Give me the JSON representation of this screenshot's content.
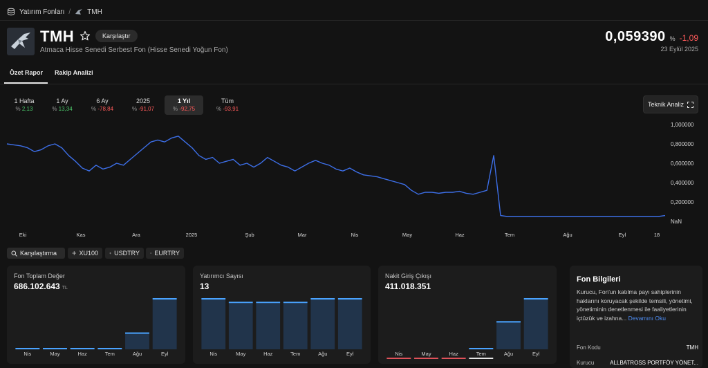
{
  "breadcrumb": {
    "root": "Yatırım Fonları",
    "separator": "/",
    "current": "TMH"
  },
  "header": {
    "code": "TMH",
    "compare_label": "Karşılaştır",
    "name": "Atmaca Hisse Senedi Serbest Fon (Hisse Senedi Yoğun Fon)",
    "price": "0,059390",
    "pct_symbol": "%",
    "change": "-1,09",
    "date": "23 Eylül 2025"
  },
  "tabs": [
    {
      "label": "Özet Rapor",
      "active": true
    },
    {
      "label": "Rakip Analizi",
      "active": false
    }
  ],
  "periods": [
    {
      "label": "1 Hafta",
      "value": "2,13",
      "sign": "pos"
    },
    {
      "label": "1 Ay",
      "value": "13,34",
      "sign": "pos"
    },
    {
      "label": "6 Ay",
      "value": "-78,84",
      "sign": "neg"
    },
    {
      "label": "2025",
      "value": "-91,07",
      "sign": "neg"
    },
    {
      "label": "1 Yıl",
      "value": "-92,75",
      "sign": "neg",
      "active": true
    },
    {
      "label": "Tüm",
      "value": "-93,91",
      "sign": "neg"
    }
  ],
  "tech_analysis_label": "Teknik Analiz",
  "chart_data": {
    "type": "line",
    "color": "#3d6fe8",
    "y_ticks": [
      "1,000000",
      "0,800000",
      "0,600000",
      "0,400000",
      "0,200000",
      "NaN"
    ],
    "ylim": [
      0,
      1
    ],
    "x_ticks": [
      "Eki",
      "Kas",
      "Ara",
      "2025",
      "Şub",
      "Mar",
      "Nis",
      "May",
      "Haz",
      "Tem",
      "Ağu",
      "Eyl",
      "18"
    ],
    "series": [
      {
        "values": [
          0.8,
          0.79,
          0.78,
          0.76,
          0.72,
          0.74,
          0.78,
          0.8,
          0.76,
          0.68,
          0.62,
          0.55,
          0.52,
          0.58,
          0.54,
          0.56,
          0.6,
          0.58,
          0.64,
          0.7,
          0.76,
          0.82,
          0.84,
          0.82,
          0.86,
          0.88,
          0.82,
          0.76,
          0.68,
          0.64,
          0.66,
          0.6,
          0.62,
          0.64,
          0.58,
          0.6,
          0.56,
          0.6,
          0.66,
          0.62,
          0.58,
          0.56,
          0.52,
          0.56,
          0.6,
          0.63,
          0.6,
          0.58,
          0.54,
          0.52,
          0.55,
          0.51,
          0.48,
          0.47,
          0.46,
          0.44,
          0.42,
          0.4,
          0.38,
          0.32,
          0.28,
          0.3,
          0.3,
          0.29,
          0.3,
          0.3,
          0.31,
          0.29,
          0.28,
          0.3,
          0.32,
          0.68,
          0.06,
          0.05,
          0.05,
          0.05,
          0.05,
          0.05,
          0.05,
          0.05,
          0.05,
          0.05,
          0.05,
          0.05,
          0.05,
          0.05,
          0.05,
          0.05,
          0.05,
          0.05,
          0.05,
          0.05,
          0.05,
          0.05,
          0.05,
          0.05,
          0.06
        ]
      }
    ]
  },
  "compare_chips": [
    {
      "label": "Karşılaştırma",
      "icon": "search-icon"
    },
    {
      "label": "XU100",
      "icon": "plus-icon"
    },
    {
      "label": "USDTRY",
      "icon": "plus-icon"
    },
    {
      "label": "EURTRY",
      "icon": "plus-icon"
    }
  ],
  "cards": [
    {
      "title": "Fon Toplam Değer",
      "value": "686.102.643",
      "unit": "TL",
      "months": [
        "Nis",
        "May",
        "Haz",
        "Tem",
        "Ağu",
        "Eyl"
      ],
      "bars": [
        0.02,
        0.02,
        0.02,
        0.02,
        0.33,
        1.0
      ],
      "bar_color": "#4aa3ff"
    },
    {
      "title": "Yatırımcı Sayısı",
      "value": "13",
      "unit": "",
      "months": [
        "Nis",
        "May",
        "Haz",
        "Tem",
        "Ağu",
        "Eyl"
      ],
      "bars": [
        1.0,
        0.93,
        0.93,
        0.93,
        1.0,
        1.0
      ],
      "bar_color": "#4aa3ff"
    },
    {
      "title": "Nakit Giriş Çıkışı",
      "value": "411.018.351",
      "unit": "",
      "months": [
        "Nis",
        "May",
        "Haz",
        "Tem",
        "Ağu",
        "Eyl"
      ],
      "bars": [
        -0.02,
        -0.02,
        -0.01,
        0.0,
        0.55,
        1.0
      ],
      "bar_color": "#4aa3ff"
    }
  ],
  "info": {
    "title": "Fon Bilgileri",
    "desc": "Kurucu, Fon'un katılma payı sahiplerinin haklarını koruyacak şekilde temsili, yönetimi, yönetiminin denetlenmesi ile faaliyetlerinin içtüzük ve izahna...",
    "more_label": "Devamını Oku",
    "rows": [
      {
        "label": "Fon Kodu",
        "value": "TMH"
      },
      {
        "label": "Kurucu",
        "value": "ALLBATROSS PORTFÖY YÖNET..."
      }
    ]
  }
}
